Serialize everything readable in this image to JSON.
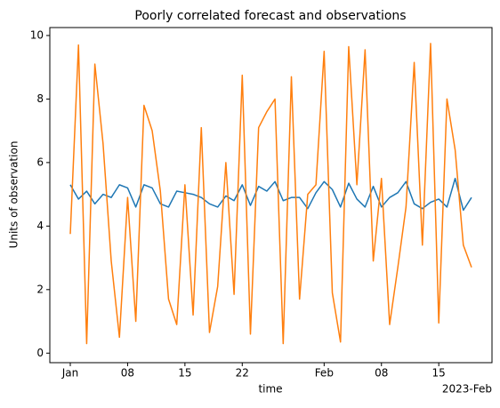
{
  "chart_data": {
    "type": "line",
    "title": "Poorly correlated forecast and observations",
    "xlabel": "time",
    "ylabel": "Units of observation",
    "x_offset_label": "2023-Feb",
    "x": [
      "2023-01-01",
      "2023-01-02",
      "2023-01-03",
      "2023-01-04",
      "2023-01-05",
      "2023-01-06",
      "2023-01-07",
      "2023-01-08",
      "2023-01-09",
      "2023-01-10",
      "2023-01-11",
      "2023-01-12",
      "2023-01-13",
      "2023-01-14",
      "2023-01-15",
      "2023-01-16",
      "2023-01-17",
      "2023-01-18",
      "2023-01-19",
      "2023-01-20",
      "2023-01-21",
      "2023-01-22",
      "2023-01-23",
      "2023-01-24",
      "2023-01-25",
      "2023-01-26",
      "2023-01-27",
      "2023-01-28",
      "2023-01-29",
      "2023-01-30",
      "2023-01-31",
      "2023-02-01",
      "2023-02-02",
      "2023-02-03",
      "2023-02-04",
      "2023-02-05",
      "2023-02-06",
      "2023-02-07",
      "2023-02-08",
      "2023-02-09",
      "2023-02-10",
      "2023-02-11",
      "2023-02-12",
      "2023-02-13",
      "2023-02-14",
      "2023-02-15",
      "2023-02-16",
      "2023-02-17",
      "2023-02-18",
      "2023-02-19"
    ],
    "series": [
      {
        "color": "#1f77b4",
        "values": [
          5.3,
          4.85,
          5.1,
          4.7,
          5.0,
          4.9,
          5.3,
          5.2,
          4.6,
          5.3,
          5.2,
          4.7,
          4.6,
          5.1,
          5.05,
          5.0,
          4.9,
          4.7,
          4.6,
          4.95,
          4.8,
          5.3,
          4.65,
          5.25,
          5.1,
          5.4,
          4.8,
          4.9,
          4.9,
          4.55,
          5.05,
          5.4,
          5.15,
          4.6,
          5.35,
          4.85,
          4.6,
          5.25,
          4.6,
          4.9,
          5.05,
          5.4,
          4.7,
          4.55,
          4.75,
          4.85,
          4.6,
          5.5,
          4.5,
          4.9
        ]
      },
      {
        "color": "#ff7f0e",
        "values": [
          3.75,
          9.7,
          0.3,
          9.1,
          6.6,
          2.9,
          0.5,
          4.9,
          1.0,
          7.8,
          7.0,
          5.1,
          1.7,
          0.9,
          5.3,
          1.2,
          7.1,
          0.65,
          2.1,
          6.0,
          1.85,
          8.75,
          0.6,
          7.1,
          7.6,
          8.0,
          0.3,
          8.7,
          1.7,
          5.0,
          5.3,
          9.5,
          1.9,
          0.35,
          9.65,
          5.3,
          9.55,
          2.9,
          5.5,
          0.9,
          2.7,
          4.6,
          9.15,
          3.4,
          9.75,
          0.95,
          8.0,
          6.4,
          3.4,
          2.7
        ]
      }
    ],
    "xlim": [
      "2022-12-29T12:00:00Z",
      "2023-02-21T12:00:00Z"
    ],
    "xticks": [
      {
        "value": "2023-01-01",
        "label": "Jan"
      },
      {
        "value": "2023-01-08",
        "label": "08"
      },
      {
        "value": "2023-01-15",
        "label": "15"
      },
      {
        "value": "2023-01-22",
        "label": "22"
      },
      {
        "value": "2023-02-01",
        "label": "Feb"
      },
      {
        "value": "2023-02-08",
        "label": "08"
      },
      {
        "value": "2023-02-15",
        "label": "15"
      }
    ],
    "ylim": [
      -0.3,
      10.25
    ],
    "yticks": [
      0,
      2,
      4,
      6,
      8,
      10
    ]
  }
}
